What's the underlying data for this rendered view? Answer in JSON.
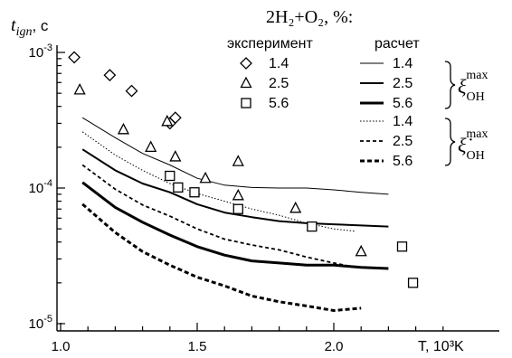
{
  "chart_data": {
    "type": "line",
    "title": "2H₂+O₂, %:",
    "ylabel": "t",
    "ylabel_sub": "ign",
    "ylabel_unit": ", c",
    "xlabel": "T, 10³K",
    "x_scale": "linear",
    "y_scale": "log",
    "xlim": [
      1.0,
      2.4
    ],
    "ylim": [
      1e-05,
      0.0011
    ],
    "x_ticks": [
      {
        "v": 1.0,
        "label": "1.0"
      },
      {
        "v": 1.5,
        "label": "1.5"
      },
      {
        "v": 2.0,
        "label": "2.0"
      }
    ],
    "y_ticks": [
      {
        "v": 0.001,
        "base": "10",
        "exp": "-3"
      },
      {
        "v": 0.0001,
        "base": "10",
        "exp": "-4"
      },
      {
        "v": 1e-05,
        "base": "10",
        "exp": "-5"
      }
    ],
    "grid": false,
    "legend": {
      "col_experiment": "эксперимент",
      "col_calc": "расчет",
      "brace1_label": "ξ",
      "brace2_label": "ξ̇",
      "brace_sup": "max",
      "brace_sub": "OH"
    },
    "experiment": [
      {
        "name": "1.4",
        "marker": "diamond",
        "points": [
          [
            1.05,
            0.00092
          ],
          [
            1.18,
            0.00068
          ],
          [
            1.26,
            0.00052
          ],
          [
            1.4,
            0.0003
          ],
          [
            1.42,
            0.00033
          ]
        ]
      },
      {
        "name": "2.5",
        "marker": "triangle",
        "points": [
          [
            1.07,
            0.00053
          ],
          [
            1.23,
            0.00027
          ],
          [
            1.33,
            0.0002
          ],
          [
            1.39,
            0.00031
          ],
          [
            1.42,
            0.00017
          ],
          [
            1.53,
            0.000118
          ],
          [
            1.65,
            0.000157
          ],
          [
            1.65,
            8.8e-05
          ],
          [
            1.86,
            7.1e-05
          ],
          [
            2.1,
            3.4e-05
          ]
        ]
      },
      {
        "name": "5.6",
        "marker": "square",
        "points": [
          [
            1.4,
            0.000123
          ],
          [
            1.43,
            0.000101
          ],
          [
            1.49,
            9.3e-05
          ],
          [
            1.65,
            7e-05
          ],
          [
            1.92,
            5.2e-05
          ],
          [
            2.25,
            3.7e-05
          ],
          [
            2.29,
            2e-05
          ]
        ]
      }
    ],
    "calc_xi": [
      {
        "name": "1.4",
        "style": "thin",
        "x": [
          1.08,
          1.2,
          1.3,
          1.4,
          1.5,
          1.6,
          1.7,
          1.8,
          1.9,
          2.0,
          2.1,
          2.2
        ],
        "y": [
          0.00033,
          0.000235,
          0.00018,
          0.000148,
          0.000118,
          0.000105,
          0.000101,
          0.0001,
          0.0001,
          9.7e-05,
          9.3e-05,
          9e-05
        ]
      },
      {
        "name": "2.5",
        "style": "medium",
        "x": [
          1.08,
          1.2,
          1.3,
          1.4,
          1.5,
          1.6,
          1.7,
          1.8,
          1.9,
          2.0,
          2.1,
          2.2
        ],
        "y": [
          0.000193,
          0.000135,
          0.000108,
          9.3e-05,
          7.6e-05,
          6.6e-05,
          6.1e-05,
          5.7e-05,
          5.5e-05,
          5.4e-05,
          5.3e-05,
          5.2e-05
        ]
      },
      {
        "name": "5.6",
        "style": "thick",
        "x": [
          1.08,
          1.2,
          1.3,
          1.4,
          1.5,
          1.6,
          1.7,
          1.8,
          1.9,
          2.0,
          2.1,
          2.2
        ],
        "y": [
          0.00011,
          7.2e-05,
          5.6e-05,
          4.5e-05,
          3.7e-05,
          3.2e-05,
          2.9e-05,
          2.8e-05,
          2.7e-05,
          2.7e-05,
          2.6e-05,
          2.55e-05
        ]
      }
    ],
    "calc_xidot": [
      {
        "name": "1.4",
        "style": "dotted",
        "x": [
          1.08,
          1.2,
          1.3,
          1.4,
          1.5,
          1.6,
          1.7,
          1.8,
          1.9,
          2.0,
          2.08
        ],
        "y": [
          0.00026,
          0.000175,
          0.000135,
          0.000108,
          9.1e-05,
          8e-05,
          7e-05,
          6.3e-05,
          5.5e-05,
          5e-05,
          4.8e-05
        ]
      },
      {
        "name": "2.5",
        "style": "dashed",
        "x": [
          1.08,
          1.2,
          1.3,
          1.4,
          1.5,
          1.6,
          1.7,
          1.8,
          1.9,
          2.0,
          2.08
        ],
        "y": [
          0.000148,
          9.8e-05,
          7.5e-05,
          6.2e-05,
          5e-05,
          4.2e-05,
          3.8e-05,
          3.5e-05,
          3.1e-05,
          2.8e-05,
          2.6e-05
        ]
      },
      {
        "name": "5.6",
        "style": "thickdash",
        "x": [
          1.08,
          1.2,
          1.3,
          1.4,
          1.5,
          1.6,
          1.7,
          1.8,
          1.9,
          2.0,
          2.1
        ],
        "y": [
          7.6e-05,
          4.7e-05,
          3.4e-05,
          2.7e-05,
          2.2e-05,
          1.9e-05,
          1.6e-05,
          1.45e-05,
          1.35e-05,
          1.25e-05,
          1.3e-05
        ]
      }
    ]
  }
}
